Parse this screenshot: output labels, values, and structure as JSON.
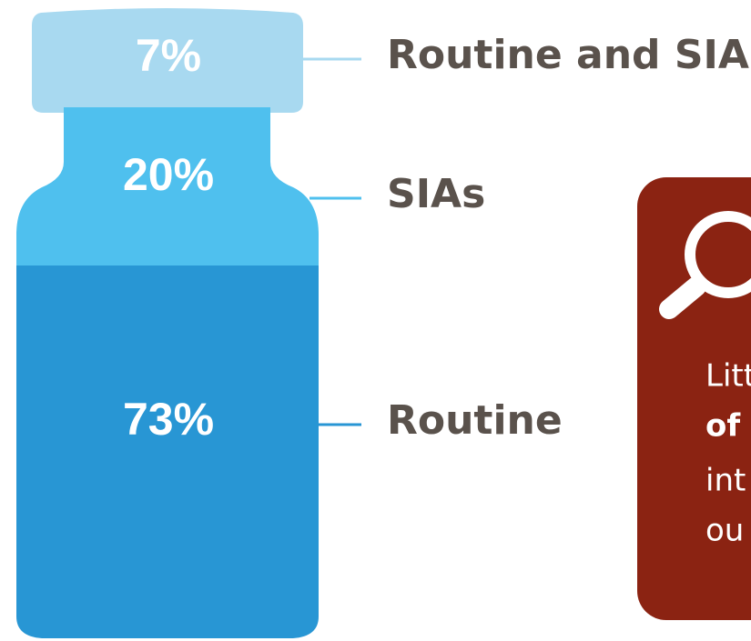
{
  "chart_data": {
    "type": "vial",
    "categories": [
      "Routine and SIAs",
      "SIAs",
      "Routine"
    ],
    "values": [
      7,
      20,
      73
    ],
    "value_labels": [
      "7%",
      "20%",
      "73%"
    ],
    "colors": [
      "#a8d9f0",
      "#4fc0ee",
      "#2896d4"
    ],
    "callout": {
      "lines": [
        "Litt",
        "of",
        "int",
        "ou"
      ]
    }
  }
}
